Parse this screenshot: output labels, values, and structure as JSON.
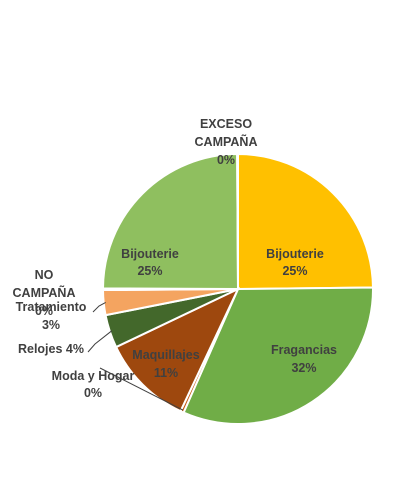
{
  "chart_data": {
    "type": "pie",
    "slices": [
      {
        "name": "Bijouterie",
        "value": 25,
        "percent_label": "25%",
        "color": "#FFC000"
      },
      {
        "name": "Fragancias",
        "value": 32,
        "percent_label": "32%",
        "color": "#70AD47"
      },
      {
        "name": "Moda y Hogar",
        "value": 0.4,
        "percent_label": "0%",
        "color": "#C55A11"
      },
      {
        "name": "Maquillajes",
        "value": 11,
        "percent_label": "11%",
        "color": "#9E480E"
      },
      {
        "name": "Relojes",
        "value": 4,
        "percent_label": "4%",
        "color": "#43682B"
      },
      {
        "name": "Tratamiento",
        "value": 3,
        "percent_label": "3%",
        "color": "#F4A460"
      },
      {
        "name": "NO CAMPAÑA",
        "value": 0.2,
        "percent_label": "0%",
        "color": "#D9D9D9"
      },
      {
        "name": "Bijouterie",
        "value": 25,
        "percent_label": "25%",
        "color": "#8FBF5F"
      },
      {
        "name": "EXCESO CAMPAÑA",
        "value": 0.1,
        "percent_label": "0%",
        "color": "#A9D18E"
      }
    ]
  }
}
